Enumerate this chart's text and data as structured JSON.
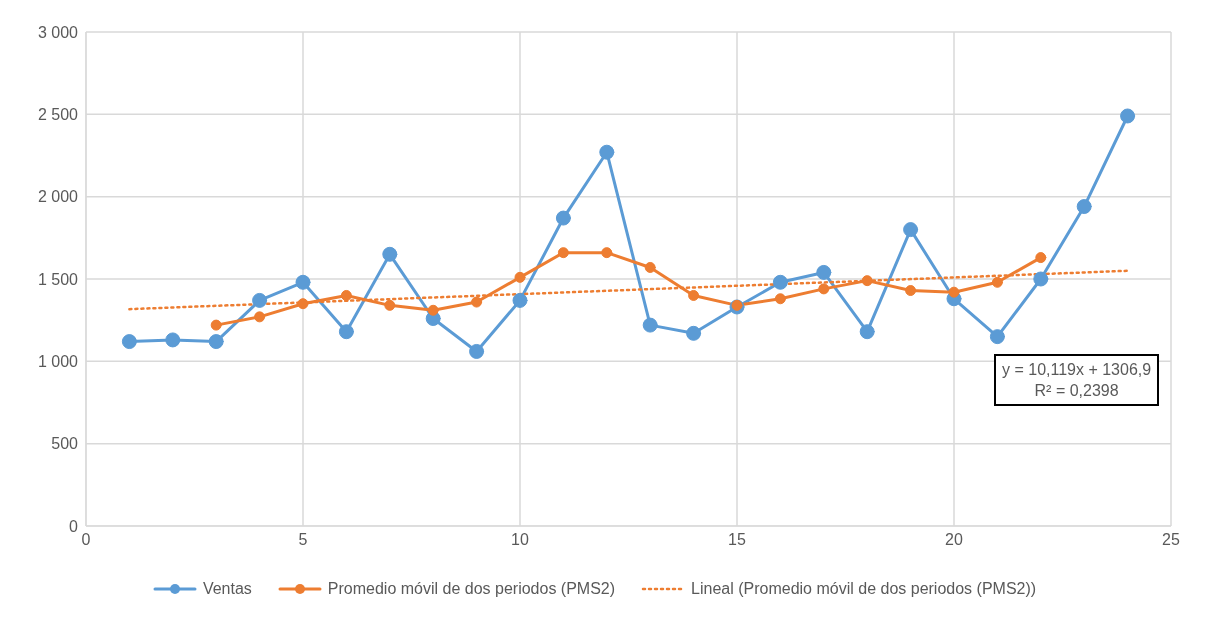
{
  "chart_data": {
    "type": "line",
    "xlim": [
      0,
      25
    ],
    "xticks": [
      0,
      5,
      10,
      15,
      20,
      25
    ],
    "ylim": [
      0,
      3000
    ],
    "yticks": [
      {
        "value": 0,
        "label": "0"
      },
      {
        "value": 500,
        "label": "500"
      },
      {
        "value": 1000,
        "label": "1 000"
      },
      {
        "value": 1500,
        "label": "1 500"
      },
      {
        "value": 2000,
        "label": "2 000"
      },
      {
        "value": 2500,
        "label": "2 500"
      },
      {
        "value": 3000,
        "label": "3 000"
      }
    ],
    "grid": true,
    "legend": "bottom",
    "marker": "circle",
    "line_style": "solid",
    "series": [
      {
        "name": "Ventas",
        "color": "#5b9bd5",
        "x": [
          1,
          2,
          3,
          4,
          5,
          6,
          7,
          8,
          9,
          10,
          11,
          12,
          13,
          14,
          15,
          16,
          17,
          18,
          19,
          20,
          21,
          22,
          23,
          24
        ],
        "values": [
          1120,
          1130,
          1120,
          1370,
          1480,
          1180,
          1650,
          1260,
          1060,
          1370,
          1870,
          2270,
          1220,
          1170,
          1330,
          1480,
          1540,
          1180,
          1800,
          1380,
          1150,
          1500,
          1940,
          2490
        ]
      },
      {
        "name": "Promedio móvil de dos periodos (PMS2)",
        "color": "#ed7d31",
        "x": [
          3,
          4,
          5,
          6,
          7,
          8,
          9,
          10,
          11,
          12,
          13,
          14,
          15,
          16,
          17,
          18,
          19,
          20,
          21,
          22
        ],
        "values": [
          1220,
          1270,
          1350,
          1400,
          1340,
          1310,
          1360,
          1510,
          1660,
          1660,
          1570,
          1400,
          1340,
          1380,
          1440,
          1490,
          1430,
          1420,
          1480,
          1630
        ]
      },
      {
        "name": "Lineal (Promedio móvil de dos periodos (PMS2))",
        "type": "line",
        "color": "#ed7d31",
        "marker": "none",
        "line_style": "dotted",
        "x": [
          1,
          24
        ],
        "values": [
          1317,
          1550
        ]
      }
    ],
    "annotations": [
      "y = 10,119x + 1306,9",
      "R² = 0,2398"
    ]
  }
}
